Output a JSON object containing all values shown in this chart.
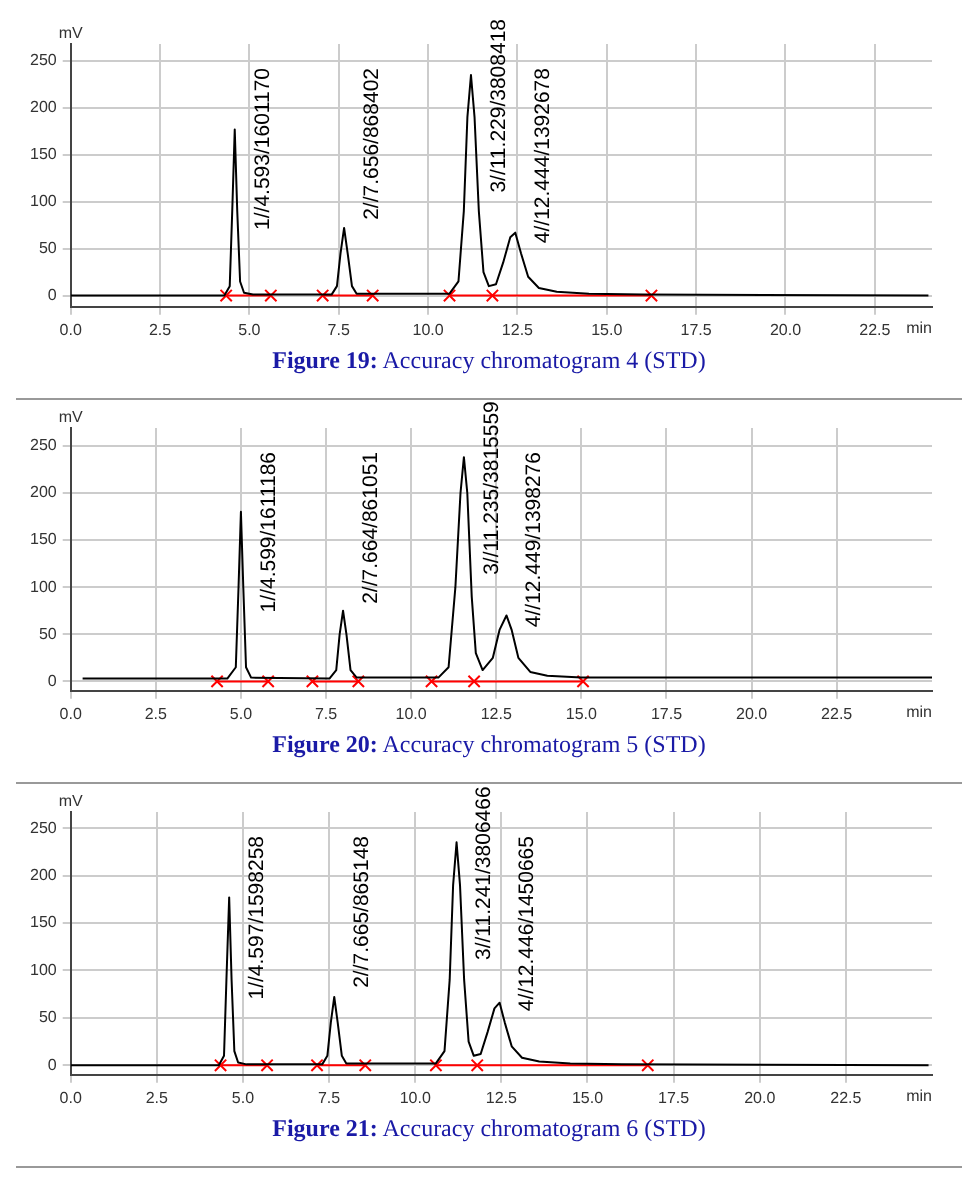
{
  "chart_data": [
    {
      "type": "line",
      "xlabel": "min",
      "ylabel": "mV",
      "grid": true,
      "marker": "none",
      "xlim": [
        0,
        24.1
      ],
      "ylim": [
        -12,
        268
      ],
      "xticks": [
        {
          "value": 0,
          "label": "0.0"
        },
        2.5,
        {
          "value": 5,
          "label": "5.0"
        },
        7.5,
        {
          "value": 10,
          "label": "10.0"
        },
        12.5,
        {
          "value": 15,
          "label": "15.0"
        },
        17.5,
        {
          "value": 20,
          "label": "20.0"
        },
        22.5
      ],
      "yticks": [
        0,
        50,
        100,
        150,
        200,
        250
      ],
      "series": [
        {
          "color": "#000000",
          "x": [
            0,
            4.3,
            4.45,
            4.52,
            4.59,
            4.66,
            4.74,
            4.85,
            5.1,
            7.3,
            7.45,
            7.55,
            7.65,
            7.75,
            7.87,
            8.0,
            10.6,
            10.85,
            11.0,
            11.1,
            11.2,
            11.3,
            11.42,
            11.55,
            11.7,
            11.9,
            12.1,
            12.3,
            12.44,
            12.6,
            12.8,
            13.1,
            13.6,
            14.5,
            16,
            24
          ],
          "values": [
            0,
            0,
            10,
            90,
            177,
            90,
            15,
            3,
            1,
            1,
            10,
            45,
            72,
            45,
            10,
            2,
            2,
            15,
            90,
            190,
            235,
            190,
            90,
            25,
            10,
            12,
            35,
            62,
            67,
            45,
            20,
            8,
            4,
            2,
            1,
            0
          ]
        },
        {
          "color": "#ff0000",
          "marker": "cross",
          "x": [
            4.35,
            5.6,
            6.3,
            7.05,
            8.45,
            9.5,
            10.6,
            11.8,
            16.25
          ],
          "values": [
            0,
            0,
            null,
            0,
            0,
            null,
            0,
            0,
            0
          ]
        }
      ],
      "annotations": [
        {
          "text": "1//4.593/1601170",
          "x": 4.59,
          "y": 177
        },
        {
          "text": "2//7.656/868402",
          "x": 7.65,
          "y": 72
        },
        {
          "text": "3//11.229/3808418",
          "x": 11.2,
          "y": 235
        },
        {
          "text": "4//12.444/1392678",
          "x": 12.44,
          "y": 67
        },
        "Figure 19: Accuracy chromatogram 4 (STD)"
      ]
    },
    {
      "type": "line",
      "xlabel": "min",
      "ylabel": "mV",
      "grid": true,
      "marker": "none",
      "xlim": [
        0,
        25.3
      ],
      "ylim": [
        -10,
        269
      ],
      "xticks": [
        {
          "value": 0,
          "label": "0.0"
        },
        2.5,
        {
          "value": 5,
          "label": "5.0"
        },
        7.5,
        {
          "value": 10,
          "label": "10.0"
        },
        12.5,
        {
          "value": 15,
          "label": "15.0"
        },
        17.5,
        {
          "value": 20,
          "label": "20.0"
        },
        22.5
      ],
      "yticks": [
        0,
        50,
        100,
        150,
        200,
        250
      ],
      "series": [
        {
          "color": "#000000",
          "x": [
            0.35,
            4.6,
            4.85,
            4.93,
            5.0,
            5.07,
            5.15,
            5.3,
            7.6,
            7.8,
            7.9,
            8.0,
            8.1,
            8.22,
            8.4,
            10.8,
            11.1,
            11.3,
            11.45,
            11.55,
            11.65,
            11.78,
            11.9,
            12.1,
            12.4,
            12.6,
            12.8,
            12.95,
            13.15,
            13.5,
            14,
            15,
            25.3
          ],
          "values": [
            3,
            3,
            15,
            100,
            180,
            100,
            15,
            4,
            3,
            12,
            50,
            75,
            50,
            12,
            4,
            4,
            15,
            100,
            200,
            238,
            200,
            90,
            30,
            12,
            25,
            55,
            70,
            55,
            25,
            10,
            6,
            4,
            4
          ]
        },
        {
          "color": "#ff0000",
          "marker": "cross",
          "x": [
            4.3,
            5.8,
            6.4,
            7.1,
            8.45,
            9.5,
            10.6,
            11.85,
            15.05
          ],
          "values": [
            0,
            0,
            null,
            0,
            0,
            null,
            0,
            0,
            0
          ]
        }
      ],
      "annotations": [
        {
          "text": "1//4.599/1611186",
          "x": 5.0,
          "y": 180
        },
        {
          "text": "2//7.664/861051",
          "x": 8.0,
          "y": 75
        },
        {
          "text": "3//11.235/3815559",
          "x": 11.55,
          "y": 238
        },
        {
          "text": "4//12.449/1398276",
          "x": 12.8,
          "y": 70
        },
        "Figure 20: Accuracy chromatogram 5 (STD)"
      ]
    },
    {
      "type": "line",
      "xlabel": "min",
      "ylabel": "mV",
      "grid": true,
      "marker": "none",
      "xlim": [
        0,
        25.0
      ],
      "ylim": [
        -10,
        267
      ],
      "xticks": [
        {
          "value": 0,
          "label": "0.0"
        },
        2.5,
        {
          "value": 5,
          "label": "5.0"
        },
        7.5,
        {
          "value": 10,
          "label": "10.0"
        },
        12.5,
        {
          "value": 15,
          "label": "15.0"
        },
        17.5,
        {
          "value": 20,
          "label": "20.0"
        },
        22.5
      ],
      "yticks": [
        0,
        50,
        100,
        150,
        200,
        250
      ],
      "series": [
        {
          "color": "#000000",
          "x": [
            0,
            4.3,
            4.45,
            4.52,
            4.6,
            4.67,
            4.75,
            4.86,
            5.1,
            7.3,
            7.45,
            7.55,
            7.65,
            7.75,
            7.87,
            8.0,
            10.6,
            10.85,
            11.0,
            11.1,
            11.2,
            11.3,
            11.42,
            11.55,
            11.7,
            11.9,
            12.1,
            12.3,
            12.45,
            12.6,
            12.8,
            13.1,
            13.6,
            14.5,
            16,
            24.9
          ],
          "values": [
            0,
            0,
            10,
            90,
            177,
            90,
            15,
            3,
            1,
            1,
            10,
            45,
            72,
            45,
            10,
            2,
            2,
            15,
            90,
            190,
            235,
            190,
            90,
            25,
            10,
            12,
            35,
            60,
            66,
            45,
            20,
            8,
            4,
            2,
            1,
            0
          ]
        },
        {
          "color": "#ff0000",
          "marker": "cross",
          "x": [
            4.35,
            5.7,
            6.4,
            7.15,
            8.55,
            9.5,
            10.6,
            11.8,
            16.75
          ],
          "values": [
            0,
            0,
            null,
            0,
            0,
            null,
            0,
            0,
            0
          ]
        }
      ],
      "annotations": [
        {
          "text": "1//4.597/1598258",
          "x": 4.6,
          "y": 177
        },
        {
          "text": "2//7.665/865148",
          "x": 7.65,
          "y": 72
        },
        {
          "text": "3//11.241/3806466",
          "x": 11.2,
          "y": 235
        },
        {
          "text": "4//12.446/1450665",
          "x": 12.45,
          "y": 66
        },
        "Figure 21: Accuracy chromatogram 6 (STD)"
      ]
    }
  ]
}
